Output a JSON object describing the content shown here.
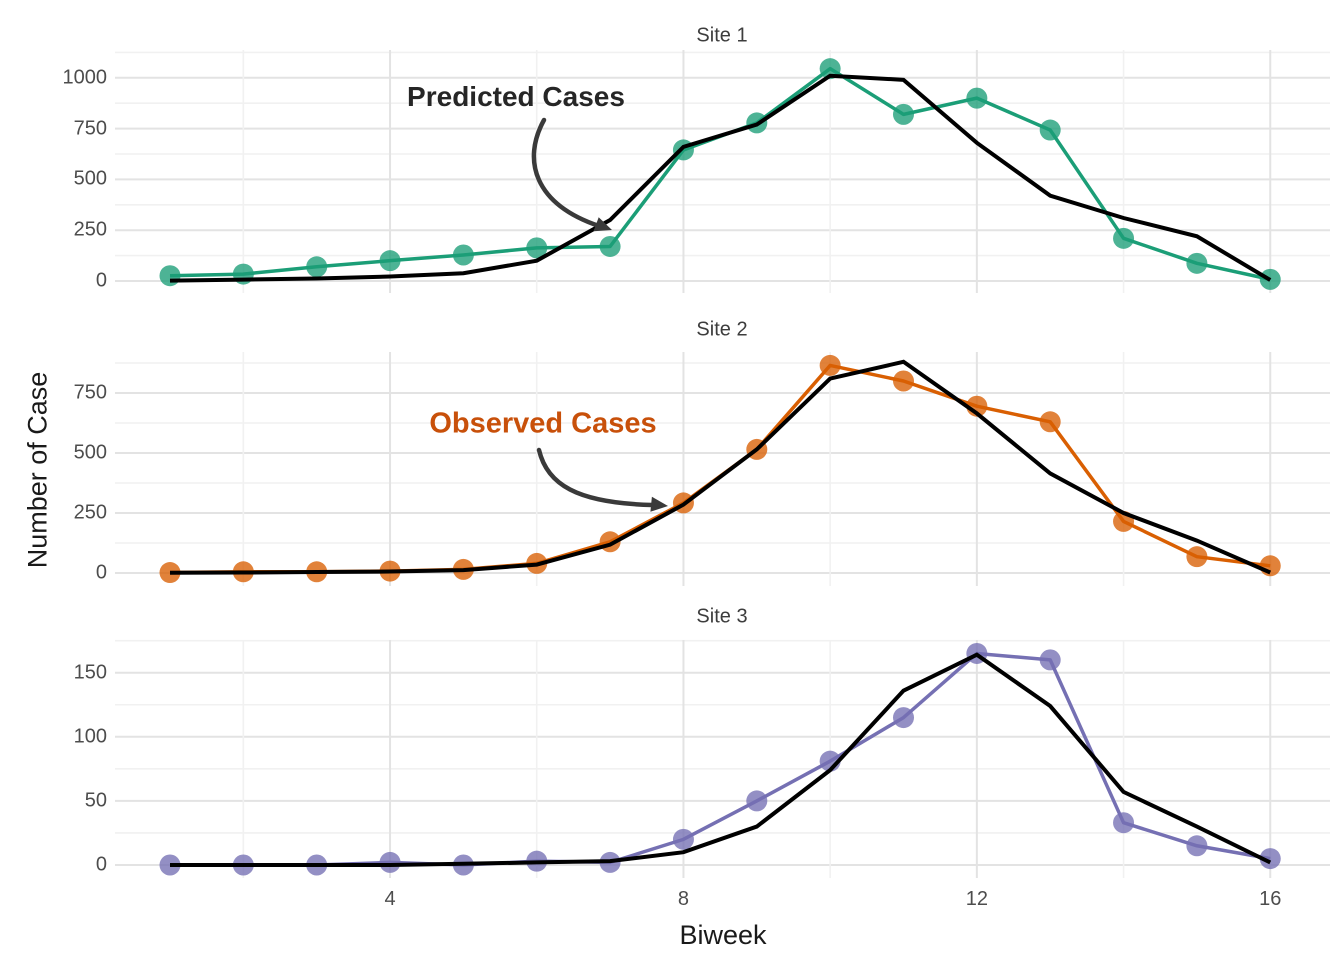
{
  "chart_data": {
    "type": "line",
    "title": "",
    "xlabel": "Biweek",
    "ylabel": "Number of Case",
    "x": [
      1,
      2,
      3,
      4,
      5,
      6,
      7,
      8,
      9,
      10,
      11,
      12,
      13,
      14,
      15,
      16
    ],
    "x_ticks": [
      4,
      8,
      12,
      16
    ],
    "x_minor": [
      2,
      6,
      10,
      14
    ],
    "grid": true,
    "legend_position": "none (labeled by arrow annotations)",
    "predicted_color": "#000000",
    "facets": [
      {
        "title": "Site 1",
        "observed_color": "#1B9E77",
        "y_ticks": [
          0,
          250,
          500,
          750,
          1000
        ],
        "y_minor": [
          125,
          375,
          625,
          875,
          1125
        ],
        "ylim": [
          0,
          1137
        ],
        "observed": [
          26,
          34,
          70,
          100,
          128,
          163,
          170,
          645,
          778,
          1045,
          820,
          900,
          743,
          210,
          87,
          8
        ],
        "predicted": [
          2,
          7,
          12,
          22,
          38,
          100,
          300,
          660,
          770,
          1010,
          990,
          680,
          420,
          310,
          220,
          5
        ]
      },
      {
        "title": "Site 2",
        "observed_color": "#D95F02",
        "y_ticks": [
          0,
          250,
          500,
          750
        ],
        "y_minor": [
          125,
          375,
          625,
          875
        ],
        "ylim": [
          0,
          908
        ],
        "observed": [
          2,
          5,
          5,
          8,
          15,
          40,
          130,
          292,
          515,
          865,
          800,
          695,
          630,
          215,
          68,
          30
        ],
        "predicted": [
          1,
          2,
          4,
          6,
          12,
          35,
          118,
          285,
          515,
          810,
          880,
          665,
          415,
          250,
          135,
          2
        ]
      },
      {
        "title": "Site 3",
        "observed_color": "#7570B3",
        "y_ticks": [
          0,
          50,
          100,
          150
        ],
        "y_minor": [
          25,
          75,
          125,
          175
        ],
        "ylim": [
          0,
          175
        ],
        "observed": [
          0,
          0,
          0,
          2,
          0,
          3,
          2,
          20,
          50,
          81,
          115,
          165,
          160,
          33,
          15,
          5
        ],
        "predicted": [
          0,
          0,
          0,
          0,
          1,
          2,
          3,
          10,
          30,
          74,
          136,
          164,
          124,
          57,
          30,
          2
        ]
      }
    ],
    "annotations": [
      {
        "text": "Predicted Cases",
        "color": "#262626",
        "target": "black predicted line, Site 1, biweek 7"
      },
      {
        "text": "Observed Cases",
        "color": "#C8500A",
        "target": "orange observed line, Site 2, biweek 8"
      }
    ]
  }
}
